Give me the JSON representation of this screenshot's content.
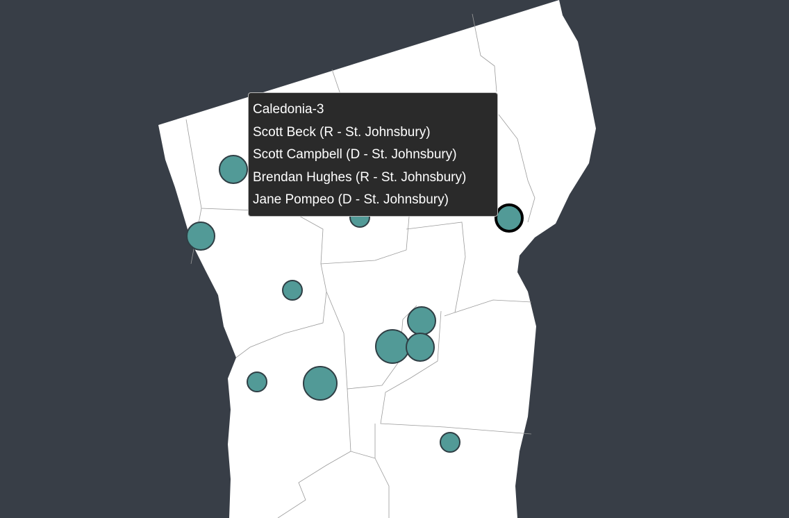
{
  "colors": {
    "background": "#383e47",
    "land": "#ffffff",
    "circle_fill": "#529a97",
    "circle_stroke": "#2f3e44",
    "highlight_stroke": "#000000",
    "tooltip_bg": "#2a2a2a"
  },
  "tooltip": {
    "title": "Caledonia-3",
    "lines": [
      "Scott Beck (R - St. Johnsbury)",
      "Scott Campbell (D - St. Johnsbury)",
      "Brendan Hughes (R - St. Johnsbury)",
      "Jane Pompeo (D - St. Johnsbury)"
    ]
  },
  "markers": [
    {
      "size": "large"
    },
    {
      "size": "large"
    },
    {
      "size": "small"
    },
    {
      "size": "large",
      "selected": true,
      "district": "Caledonia-3"
    },
    {
      "size": "small"
    },
    {
      "size": "large"
    },
    {
      "size": "xlarge"
    },
    {
      "size": "large"
    },
    {
      "size": "small"
    },
    {
      "size": "xlarge"
    },
    {
      "size": "small"
    }
  ]
}
